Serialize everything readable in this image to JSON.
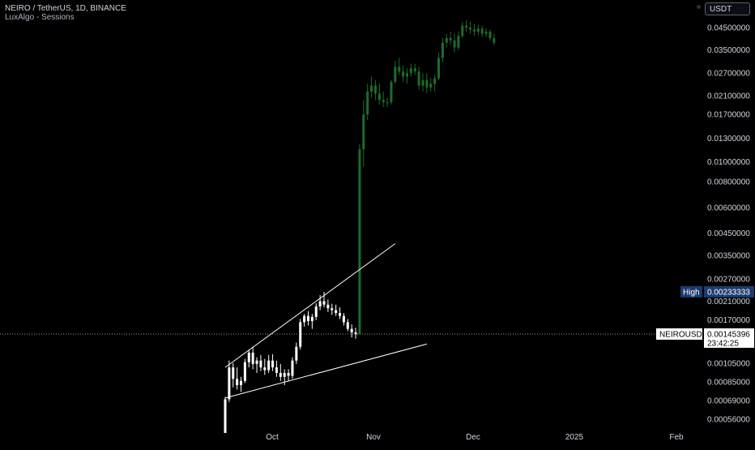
{
  "header": {
    "title": "NEIRO / TetherUS, 1D, BINANCE",
    "indicator": "LuxAlgo - Sessions",
    "currency_button": "USDT"
  },
  "colors": {
    "background": "#000000",
    "axis_text": "#d1d4dc",
    "pre_listing_candle": "#ffffff",
    "post_listing_candle": "#1f6b2c",
    "trendline": "#ffffff",
    "high_label_bg": "#1e3a6e",
    "symbol_label_bg": "#ffffff"
  },
  "chart_data": {
    "type": "candlestick",
    "symbol": "NEIROUSDT",
    "y_scale": "log",
    "price_ticks": [
      "0.04500000",
      "0.03500000",
      "0.02700000",
      "0.02100000",
      "0.01700000",
      "0.01300000",
      "0.01000000",
      "0.00800000",
      "0.00600000",
      "0.00450000",
      "0.00350000",
      "0.00270000",
      "0.00210000",
      "0.00170000",
      "0.00105000",
      "0.00085000",
      "0.00069000",
      "0.00056000"
    ],
    "time_ticks": [
      "Oct",
      "Nov",
      "Dec",
      "2025",
      "Feb"
    ],
    "last_price": "0.00145396",
    "countdown": "23:42:25",
    "high_label": "High",
    "high_value": "0.00233333",
    "candles_pre": [
      {
        "o": 0.00048,
        "h": 0.00072,
        "l": 0.00048,
        "c": 0.0007
      },
      {
        "o": 0.0007,
        "h": 0.00108,
        "l": 0.00068,
        "c": 0.001
      },
      {
        "o": 0.001,
        "h": 0.00105,
        "l": 0.0008,
        "c": 0.00088
      },
      {
        "o": 0.00088,
        "h": 0.001,
        "l": 0.00078,
        "c": 0.00082
      },
      {
        "o": 0.00082,
        "h": 0.0009,
        "l": 0.00076,
        "c": 0.00086
      },
      {
        "o": 0.00086,
        "h": 0.0011,
        "l": 0.00084,
        "c": 0.00106
      },
      {
        "o": 0.00106,
        "h": 0.00122,
        "l": 0.001,
        "c": 0.00118
      },
      {
        "o": 0.00118,
        "h": 0.00126,
        "l": 0.00098,
        "c": 0.00104
      },
      {
        "o": 0.00104,
        "h": 0.00112,
        "l": 0.00094,
        "c": 0.00108
      },
      {
        "o": 0.00108,
        "h": 0.00115,
        "l": 0.00096,
        "c": 0.001
      },
      {
        "o": 0.001,
        "h": 0.0011,
        "l": 0.00092,
        "c": 0.00097
      },
      {
        "o": 0.00097,
        "h": 0.00115,
        "l": 0.00094,
        "c": 0.00108
      },
      {
        "o": 0.00108,
        "h": 0.00116,
        "l": 0.00096,
        "c": 0.001
      },
      {
        "o": 0.001,
        "h": 0.00108,
        "l": 0.0009,
        "c": 0.00094
      },
      {
        "o": 0.00094,
        "h": 0.00104,
        "l": 0.00086,
        "c": 0.0009
      },
      {
        "o": 0.0009,
        "h": 0.00098,
        "l": 0.00082,
        "c": 0.00094
      },
      {
        "o": 0.00094,
        "h": 0.00098,
        "l": 0.00086,
        "c": 0.00091
      },
      {
        "o": 0.00091,
        "h": 0.00112,
        "l": 0.00088,
        "c": 0.00108
      },
      {
        "o": 0.00108,
        "h": 0.00132,
        "l": 0.00104,
        "c": 0.00126
      },
      {
        "o": 0.00126,
        "h": 0.00172,
        "l": 0.00122,
        "c": 0.00166
      },
      {
        "o": 0.00166,
        "h": 0.00182,
        "l": 0.00158,
        "c": 0.00178
      },
      {
        "o": 0.00178,
        "h": 0.00188,
        "l": 0.0016,
        "c": 0.00168
      },
      {
        "o": 0.00168,
        "h": 0.00182,
        "l": 0.00154,
        "c": 0.00176
      },
      {
        "o": 0.00176,
        "h": 0.00205,
        "l": 0.0017,
        "c": 0.00198
      },
      {
        "o": 0.00198,
        "h": 0.00225,
        "l": 0.0019,
        "c": 0.0021
      },
      {
        "o": 0.0021,
        "h": 0.00233,
        "l": 0.00196,
        "c": 0.00202
      },
      {
        "o": 0.00202,
        "h": 0.00214,
        "l": 0.00186,
        "c": 0.00194
      },
      {
        "o": 0.00194,
        "h": 0.00204,
        "l": 0.0018,
        "c": 0.0019
      },
      {
        "o": 0.0019,
        "h": 0.00202,
        "l": 0.00178,
        "c": 0.00184
      },
      {
        "o": 0.00184,
        "h": 0.00196,
        "l": 0.00172,
        "c": 0.00178
      },
      {
        "o": 0.00178,
        "h": 0.00184,
        "l": 0.0016,
        "c": 0.00166
      },
      {
        "o": 0.00166,
        "h": 0.00172,
        "l": 0.0015,
        "c": 0.00154
      },
      {
        "o": 0.00154,
        "h": 0.00162,
        "l": 0.0014,
        "c": 0.00148
      },
      {
        "o": 0.00148,
        "h": 0.00156,
        "l": 0.00138,
        "c": 0.00145
      }
    ],
    "candles_post": [
      {
        "o": 0.00145,
        "h": 0.0122,
        "l": 0.00145,
        "c": 0.0115
      },
      {
        "o": 0.0115,
        "h": 0.02,
        "l": 0.0095,
        "c": 0.017
      },
      {
        "o": 0.017,
        "h": 0.024,
        "l": 0.016,
        "c": 0.022
      },
      {
        "o": 0.022,
        "h": 0.026,
        "l": 0.0205,
        "c": 0.0235
      },
      {
        "o": 0.0235,
        "h": 0.025,
        "l": 0.02,
        "c": 0.0215
      },
      {
        "o": 0.0215,
        "h": 0.024,
        "l": 0.019,
        "c": 0.02
      },
      {
        "o": 0.02,
        "h": 0.022,
        "l": 0.0185,
        "c": 0.0195
      },
      {
        "o": 0.0195,
        "h": 0.0205,
        "l": 0.0185,
        "c": 0.0195
      },
      {
        "o": 0.0195,
        "h": 0.025,
        "l": 0.019,
        "c": 0.0245
      },
      {
        "o": 0.0245,
        "h": 0.031,
        "l": 0.024,
        "c": 0.029
      },
      {
        "o": 0.029,
        "h": 0.032,
        "l": 0.0265,
        "c": 0.0275
      },
      {
        "o": 0.0275,
        "h": 0.0295,
        "l": 0.0245,
        "c": 0.026
      },
      {
        "o": 0.026,
        "h": 0.0285,
        "l": 0.024,
        "c": 0.027
      },
      {
        "o": 0.027,
        "h": 0.03,
        "l": 0.026,
        "c": 0.0285
      },
      {
        "o": 0.0285,
        "h": 0.03,
        "l": 0.0265,
        "c": 0.0275
      },
      {
        "o": 0.0275,
        "h": 0.029,
        "l": 0.0225,
        "c": 0.0235
      },
      {
        "o": 0.0235,
        "h": 0.027,
        "l": 0.022,
        "c": 0.025
      },
      {
        "o": 0.025,
        "h": 0.027,
        "l": 0.0215,
        "c": 0.023
      },
      {
        "o": 0.023,
        "h": 0.0255,
        "l": 0.022,
        "c": 0.024
      },
      {
        "o": 0.024,
        "h": 0.0265,
        "l": 0.022,
        "c": 0.0255
      },
      {
        "o": 0.0255,
        "h": 0.034,
        "l": 0.025,
        "c": 0.032
      },
      {
        "o": 0.032,
        "h": 0.04,
        "l": 0.0305,
        "c": 0.038
      },
      {
        "o": 0.038,
        "h": 0.042,
        "l": 0.036,
        "c": 0.04
      },
      {
        "o": 0.04,
        "h": 0.043,
        "l": 0.037,
        "c": 0.039
      },
      {
        "o": 0.039,
        "h": 0.042,
        "l": 0.034,
        "c": 0.036
      },
      {
        "o": 0.036,
        "h": 0.043,
        "l": 0.035,
        "c": 0.041
      },
      {
        "o": 0.041,
        "h": 0.048,
        "l": 0.04,
        "c": 0.046
      },
      {
        "o": 0.046,
        "h": 0.049,
        "l": 0.043,
        "c": 0.045
      },
      {
        "o": 0.045,
        "h": 0.048,
        "l": 0.042,
        "c": 0.044
      },
      {
        "o": 0.044,
        "h": 0.047,
        "l": 0.041,
        "c": 0.043
      },
      {
        "o": 0.043,
        "h": 0.0465,
        "l": 0.0415,
        "c": 0.0445
      },
      {
        "o": 0.0445,
        "h": 0.046,
        "l": 0.0405,
        "c": 0.042
      },
      {
        "o": 0.042,
        "h": 0.0445,
        "l": 0.0405,
        "c": 0.043
      },
      {
        "o": 0.043,
        "h": 0.044,
        "l": 0.039,
        "c": 0.04
      },
      {
        "o": 0.04,
        "h": 0.042,
        "l": 0.037,
        "c": 0.038
      }
    ],
    "trendlines": [
      {
        "name": "upper-wedge",
        "from": {
          "candle": 0,
          "price": 0.001
        },
        "to": {
          "candle": 43,
          "price": 0.004
        }
      },
      {
        "name": "lower-wedge",
        "from": {
          "candle": 0,
          "price": 0.00071
        },
        "to": {
          "candle": 51,
          "price": 0.0013
        }
      }
    ]
  }
}
